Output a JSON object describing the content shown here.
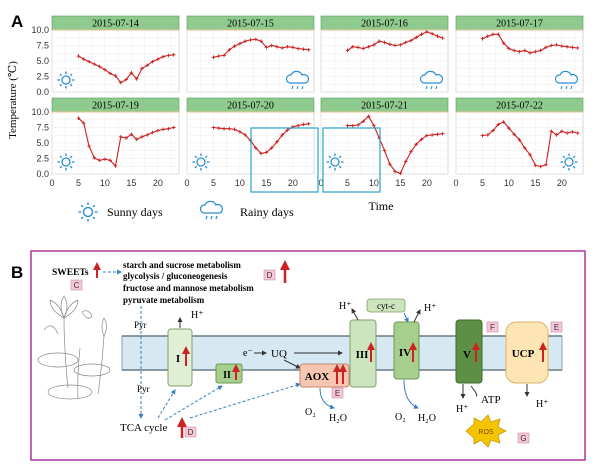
{
  "panel_a_label": "A",
  "panel_b_label": "B",
  "chart_data": {
    "type": "line",
    "xlabel": "Time",
    "ylabel": "Temperature (℃)",
    "xlim": [
      0,
      24
    ],
    "ylim": [
      0,
      10
    ],
    "x_ticks": [
      "0",
      "5",
      "10",
      "15",
      "20"
    ],
    "y_ticks": [
      "0.0",
      "2.5",
      "5.0",
      "7.5",
      "10.0"
    ],
    "line_color": "#cc2222",
    "header_color": "#8fcb8f",
    "reference_line_color": "#f0c090",
    "grid": true,
    "x": [
      5,
      6,
      7,
      8,
      9,
      10,
      11,
      12,
      13,
      14,
      15,
      16,
      17,
      18,
      19,
      20,
      21,
      22,
      23
    ],
    "panels": [
      {
        "title": "2015-07-14",
        "weather": "sunny",
        "values": [
          5.8,
          5.3,
          4.9,
          4.5,
          4.1,
          3.6,
          3.0,
          2.6,
          1.5,
          2.0,
          3.1,
          2.1,
          3.8,
          4.3,
          4.9,
          5.3,
          5.7,
          5.9,
          6.0
        ]
      },
      {
        "title": "2015-07-15",
        "weather": "rainy",
        "values": [
          5.6,
          5.8,
          5.9,
          6.8,
          7.4,
          7.8,
          8.2,
          8.4,
          8.5,
          8.2,
          7.2,
          7.5,
          7.3,
          7.1,
          7.3,
          7.2,
          7.0,
          6.9,
          6.8
        ]
      },
      {
        "title": "2015-07-16",
        "weather": "rainy",
        "values": [
          6.7,
          7.3,
          7.2,
          7.0,
          7.3,
          7.6,
          8.2,
          8.0,
          7.7,
          7.5,
          7.6,
          8.0,
          8.3,
          8.8,
          9.3,
          9.7,
          9.4,
          9.0,
          8.7
        ]
      },
      {
        "title": "2015-07-17",
        "weather": "rainy",
        "values": [
          8.6,
          9.0,
          9.3,
          9.3,
          7.9,
          7.0,
          6.7,
          6.5,
          6.7,
          6.3,
          6.5,
          6.7,
          7.2,
          7.5,
          7.6,
          7.4,
          7.3,
          7.2,
          7.1
        ]
      },
      {
        "title": "2015-07-19",
        "weather": "sunny",
        "values": [
          9.0,
          8.2,
          4.5,
          2.6,
          2.2,
          2.4,
          2.2,
          1.3,
          6.0,
          5.8,
          6.4,
          5.6,
          6.0,
          6.3,
          6.7,
          7.0,
          7.2,
          7.3,
          7.5
        ]
      },
      {
        "title": "2015-07-20",
        "weather": "sunny",
        "values": [
          7.5,
          7.4,
          7.3,
          7.3,
          7.2,
          6.8,
          6.3,
          5.4,
          4.2,
          3.3,
          3.5,
          4.2,
          5.2,
          6.3,
          7.1,
          7.6,
          7.8,
          8.0,
          8.1
        ]
      },
      {
        "title": "2015-07-21",
        "weather": "sunny",
        "values": [
          7.8,
          7.8,
          7.9,
          8.5,
          9.3,
          7.8,
          5.8,
          3.8,
          1.6,
          0.4,
          0.1,
          2.0,
          3.6,
          4.8,
          5.6,
          6.2,
          6.3,
          6.4,
          6.5
        ]
      },
      {
        "title": "2015-07-22",
        "weather": "sunny",
        "values": [
          6.2,
          6.3,
          7.0,
          8.0,
          8.4,
          7.4,
          6.4,
          5.5,
          4.2,
          3.1,
          1.4,
          1.2,
          1.5,
          6.9,
          6.3,
          6.9,
          6.6,
          6.8,
          6.6
        ]
      }
    ]
  },
  "legend": {
    "sunny_label": "Sunny days",
    "rainy_label": "Rainy days"
  },
  "diagram": {
    "sweets": "SWEETs",
    "pathways": [
      "starch and sucrose metabolism",
      "glycolysis / gluconeogenesis",
      "fructose and mannose metabolism",
      "pyruvate metabolism"
    ],
    "pyr_top": "Pyr",
    "pyr_bottom": "Pyr",
    "tca": "TCA cycle",
    "complex_i": "I",
    "complex_ii": "II",
    "complex_iii": "III",
    "complex_iv": "IV",
    "complex_v": "V",
    "aox": "AOX",
    "ucp": "UCP",
    "uq": "UQ",
    "electron": "e⁻",
    "cytc": "cyt-c",
    "h_plus": "H⁺",
    "o2": "O₂",
    "h2o": "H₂O",
    "atp": "ATP",
    "ros": "ROS",
    "tags": {
      "c": "C",
      "d": "D",
      "e": "E",
      "f": "F",
      "g": "G"
    }
  }
}
